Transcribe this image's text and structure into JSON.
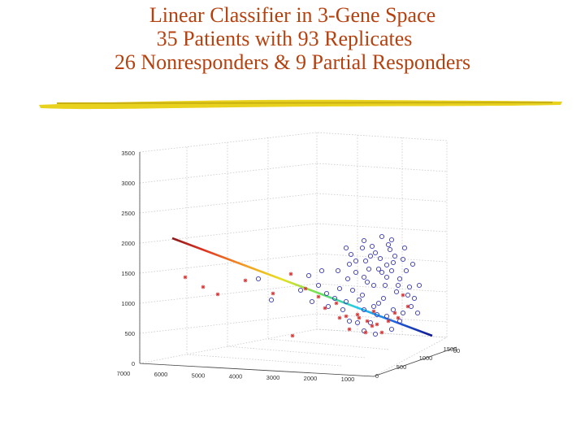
{
  "slide": {
    "title_lines": [
      "Linear Classifier in 3-Gene Space",
      "35 Patients with 93 Replicates",
      "26 Nonresponders & 9 Partial Responders"
    ],
    "accent_color": "#b5410f",
    "underline_color": "#e8d21d"
  },
  "chart_data": {
    "type": "scatter",
    "projection": "3d",
    "z_ticks": [
      "0",
      "500",
      "1000",
      "1500",
      "2000",
      "2500",
      "3000",
      "3500"
    ],
    "x_ticks": [
      "7000",
      "6000",
      "5000",
      "4000",
      "3000",
      "2000",
      "1000"
    ],
    "y_ticks": [
      "0",
      "500",
      "1000",
      "1500"
    ],
    "y_tick_partial": "00",
    "grid": true,
    "series": [
      {
        "marker": "circle",
        "color": "#3a3ab8"
      },
      {
        "marker": "asterisk",
        "color": "#d23a3a"
      }
    ],
    "decision_line": {
      "colormap": "jet"
    }
  }
}
